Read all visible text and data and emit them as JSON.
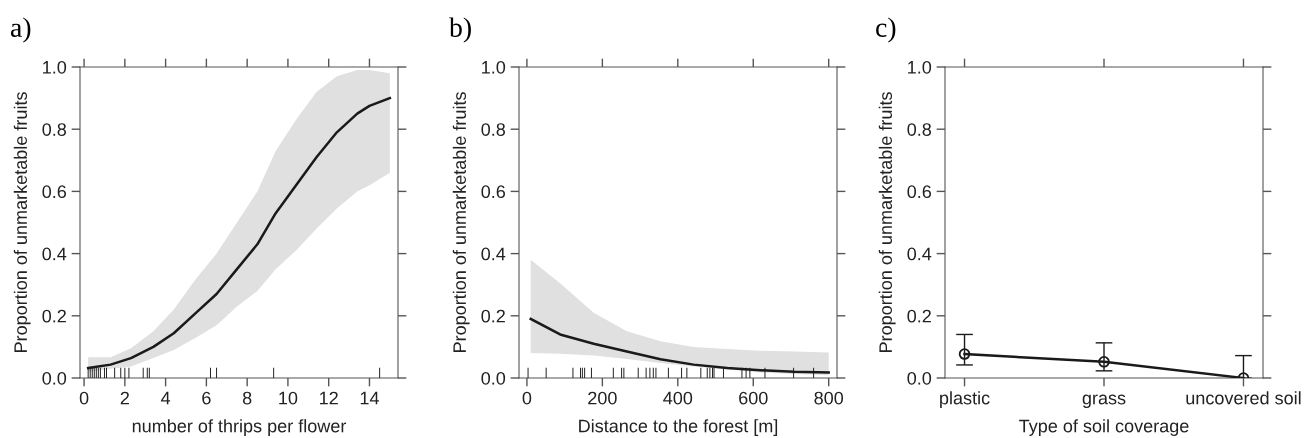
{
  "chart_data": [
    {
      "type": "line",
      "title": "a)",
      "xlabel": "number of thrips per flower",
      "ylabel": "Proportion of unmarketable fruits",
      "xlim": [
        -0.2,
        15.4
      ],
      "xticks": [
        0,
        2,
        4,
        6,
        8,
        10,
        12,
        14
      ],
      "ylim": [
        0,
        1
      ],
      "yticks": [
        {
          "value": 0.0,
          "label": "0.0"
        },
        {
          "value": 0.2,
          "label": "0.2"
        },
        {
          "value": 0.4,
          "label": "0.4"
        },
        {
          "value": 0.6,
          "label": "0.6"
        },
        {
          "value": 0.8,
          "label": "0.8"
        },
        {
          "value": 1.0,
          "label": "1.0"
        }
      ],
      "grid": false,
      "legend": false,
      "marker": "none",
      "line_style": "solid",
      "series": [
        {
          "type": "line",
          "color": "#1a1a1a",
          "x": [
            0.2,
            1.3,
            2.3,
            3.4,
            4.4,
            5.5,
            6.5,
            7.5,
            8.5,
            9.4,
            10.4,
            11.4,
            12.4,
            13.4,
            14.0,
            15.0
          ],
          "values": [
            0.032,
            0.043,
            0.064,
            0.1,
            0.144,
            0.21,
            0.27,
            0.35,
            0.43,
            0.53,
            0.62,
            0.71,
            0.79,
            0.85,
            0.875,
            0.9
          ],
          "lower": [
            0.02,
            0.03,
            0.037,
            0.064,
            0.09,
            0.13,
            0.17,
            0.23,
            0.28,
            0.35,
            0.41,
            0.48,
            0.545,
            0.6,
            0.62,
            0.66
          ],
          "upper": [
            0.067,
            0.067,
            0.096,
            0.15,
            0.22,
            0.32,
            0.4,
            0.5,
            0.6,
            0.73,
            0.83,
            0.92,
            0.97,
            0.99,
            0.99,
            0.98
          ]
        },
        {
          "type": "bar",
          "color": "#1a1a1a",
          "x": [
            0.2,
            0.3,
            0.4,
            0.5,
            0.6,
            0.7,
            0.8,
            1.0,
            1.1,
            1.5,
            1.8,
            2.0,
            2.2,
            2.9,
            3.1,
            3.2,
            6.2,
            6.5,
            9.3,
            14.5
          ],
          "values": [
            0.033,
            0.033,
            0.033,
            0.033,
            0.033,
            0.033,
            0.033,
            0.033,
            0.033,
            0.033,
            0.033,
            0.033,
            0.033,
            0.033,
            0.033,
            0.033,
            0.033,
            0.033,
            0.033,
            0.033
          ]
        }
      ]
    },
    {
      "type": "line",
      "title": "b)",
      "xlabel": "Distance to the forest [m]",
      "ylabel": "Proportion of unmarketable fruits",
      "xlim": [
        -21,
        822
      ],
      "xticks": [
        0,
        200,
        400,
        600,
        800
      ],
      "ylim": [
        0,
        1
      ],
      "yticks": [
        {
          "value": 0.0,
          "label": "0.0"
        },
        {
          "value": 0.2,
          "label": "0.2"
        },
        {
          "value": 0.4,
          "label": "0.4"
        },
        {
          "value": 0.6,
          "label": "0.6"
        },
        {
          "value": 0.8,
          "label": "0.8"
        },
        {
          "value": 1.0,
          "label": "1.0"
        }
      ],
      "grid": false,
      "legend": false,
      "marker": "none",
      "line_style": "solid",
      "series": [
        {
          "type": "line",
          "color": "#1a1a1a",
          "x": [
            10,
            88,
            177,
            265,
            354,
            442,
            531,
            619,
            708,
            800
          ],
          "values": [
            0.19,
            0.14,
            0.11,
            0.085,
            0.06,
            0.043,
            0.032,
            0.025,
            0.02,
            0.018
          ],
          "lower": [
            0.08,
            0.078,
            0.072,
            0.061,
            0.048,
            0.037,
            0.027,
            0.018,
            0.013,
            0.01
          ],
          "upper": [
            0.38,
            0.305,
            0.21,
            0.15,
            0.118,
            0.1,
            0.093,
            0.088,
            0.085,
            0.082
          ]
        },
        {
          "type": "bar",
          "color": "#1a1a1a",
          "values": [
            0.033,
            0.033,
            0.033,
            0.033,
            0.033,
            0.033,
            0.033,
            0.033,
            0.033,
            0.033,
            0.033,
            0.033,
            0.033,
            0.033,
            0.033,
            0.033,
            0.033,
            0.033,
            0.033,
            0.033,
            0.033,
            0.033,
            0.033,
            0.033,
            0.033,
            0.033,
            0.033,
            0.033,
            0.033,
            0.033
          ],
          "x": [
            3,
            51,
            122,
            142,
            147,
            153,
            171,
            229,
            251,
            257,
            295,
            316,
            326,
            335,
            342,
            375,
            410,
            424,
            461,
            478,
            485,
            492,
            496,
            521,
            570,
            581,
            591,
            631,
            707,
            760
          ]
        }
      ]
    },
    {
      "type": "line",
      "title": "c)",
      "xlabel": "Type of soil coverage",
      "ylabel": "Proportion of unmarketable fruits",
      "categories": [
        "plastic",
        "grass",
        "uncovered soil"
      ],
      "ylim": [
        0,
        1
      ],
      "yticks": [
        {
          "value": 0.0,
          "label": "0.0"
        },
        {
          "value": 0.2,
          "label": "0.2"
        },
        {
          "value": 0.4,
          "label": "0.4"
        },
        {
          "value": 0.6,
          "label": "0.6"
        },
        {
          "value": 0.8,
          "label": "0.8"
        },
        {
          "value": 1.0,
          "label": "1.0"
        }
      ],
      "grid": false,
      "legend": false,
      "marker": "circle",
      "line_style": "solid",
      "series": [
        {
          "color": "#1a1a1a",
          "values": [
            0.077,
            0.052,
            0.0
          ],
          "errors": [
            [
              0.042,
              0.14
            ],
            [
              0.023,
              0.113
            ],
            [
              0.0,
              0.072
            ]
          ]
        }
      ]
    }
  ]
}
